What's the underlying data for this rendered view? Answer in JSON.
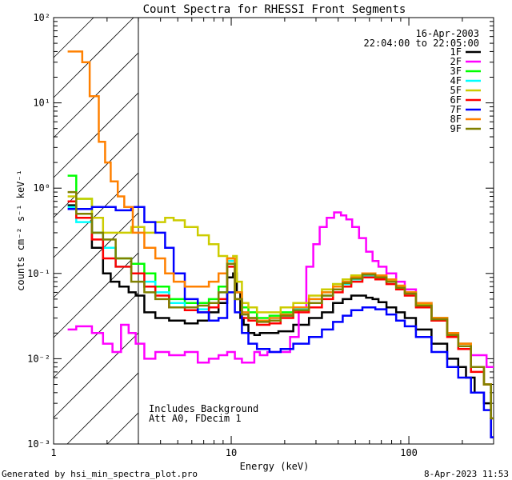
{
  "chart_data": {
    "type": "line",
    "title": "Count Spectra for RHESSI Front Segments",
    "xlabel": "Energy (keV)",
    "ylabel": "counts cm⁻² s⁻¹ keV⁻¹",
    "x_scale": "log",
    "y_scale": "log",
    "xlim": [
      1,
      300
    ],
    "ylim": [
      0.001,
      100
    ],
    "x_ticks": [
      {
        "value": 1,
        "label": "1"
      },
      {
        "value": 10,
        "label": "10"
      },
      {
        "value": 100,
        "label": "100"
      }
    ],
    "y_ticks": [
      {
        "exp": -3,
        "label": "10⁻³"
      },
      {
        "exp": -2,
        "label": "10⁻²"
      },
      {
        "exp": -1,
        "label": "10⁻¹"
      },
      {
        "exp": 0,
        "label": "10⁰"
      },
      {
        "exp": 1,
        "label": "10¹"
      },
      {
        "exp": 2,
        "label": "10²"
      }
    ],
    "hatched_region": {
      "x_from": 1,
      "x_to": 3
    },
    "date": "16-Apr-2003",
    "time_range": "22:04:00 to 22:05:00",
    "annotations": [
      "Includes Background",
      "Att A0, FDecim 1"
    ],
    "footer_left": "Generated by hsi_min_spectra_plot.pro",
    "footer_right": "8-Apr-2023 11:53",
    "legend_position": "top-right",
    "series": [
      {
        "name": "1F",
        "color": "#000000",
        "x": [
          1.2,
          1.5,
          1.8,
          2.0,
          2.2,
          2.5,
          2.8,
          3.0,
          3.5,
          4,
          5,
          6,
          7,
          8,
          9,
          10,
          10.5,
          11,
          11.5,
          12,
          13,
          14,
          15,
          17,
          20,
          25,
          30,
          35,
          40,
          45,
          50,
          55,
          60,
          65,
          70,
          80,
          90,
          100,
          120,
          150,
          180,
          200,
          220,
          250,
          280,
          300
        ],
        "values": [
          0.63,
          0.45,
          0.2,
          0.1,
          0.08,
          0.07,
          0.06,
          0.055,
          0.035,
          0.03,
          0.028,
          0.026,
          0.028,
          0.035,
          0.045,
          0.09,
          0.1,
          0.06,
          0.03,
          0.025,
          0.02,
          0.019,
          0.02,
          0.02,
          0.021,
          0.025,
          0.03,
          0.035,
          0.045,
          0.05,
          0.055,
          0.055,
          0.052,
          0.05,
          0.046,
          0.04,
          0.035,
          0.03,
          0.022,
          0.015,
          0.01,
          0.008,
          0.006,
          0.004,
          0.003,
          0.0012
        ]
      },
      {
        "name": "2F",
        "color": "#ff00ff",
        "x": [
          1.2,
          1.5,
          1.8,
          2.0,
          2.3,
          2.5,
          2.8,
          3.0,
          3.5,
          4,
          5,
          6,
          7,
          8,
          9,
          10,
          11,
          12,
          13,
          14,
          15,
          17,
          20,
          23,
          25,
          28,
          30,
          33,
          36,
          40,
          43,
          46,
          50,
          55,
          60,
          65,
          70,
          80,
          90,
          100,
          120,
          150,
          180,
          200,
          250,
          300
        ],
        "values": [
          0.022,
          0.024,
          0.02,
          0.015,
          0.012,
          0.025,
          0.02,
          0.015,
          0.01,
          0.012,
          0.011,
          0.012,
          0.009,
          0.01,
          0.011,
          0.012,
          0.01,
          0.009,
          0.009,
          0.012,
          0.011,
          0.012,
          0.012,
          0.018,
          0.04,
          0.12,
          0.22,
          0.35,
          0.45,
          0.52,
          0.48,
          0.43,
          0.35,
          0.26,
          0.18,
          0.14,
          0.12,
          0.1,
          0.08,
          0.065,
          0.045,
          0.03,
          0.02,
          0.015,
          0.011,
          0.008
        ]
      },
      {
        "name": "3F",
        "color": "#00ff00",
        "x": [
          1.2,
          1.5,
          1.8,
          2.0,
          2.5,
          3.0,
          3.5,
          4,
          5,
          6,
          7,
          8,
          9,
          10,
          11,
          12,
          13,
          15,
          18,
          20,
          25,
          30,
          35,
          40,
          45,
          50,
          60,
          70,
          80,
          90,
          100,
          120,
          150,
          180,
          200,
          250,
          280,
          300
        ],
        "values": [
          1.4,
          0.75,
          0.3,
          0.2,
          0.15,
          0.13,
          0.1,
          0.07,
          0.05,
          0.045,
          0.045,
          0.05,
          0.07,
          0.15,
          0.06,
          0.04,
          0.035,
          0.03,
          0.032,
          0.035,
          0.04,
          0.05,
          0.06,
          0.075,
          0.085,
          0.09,
          0.1,
          0.09,
          0.08,
          0.07,
          0.06,
          0.045,
          0.03,
          0.02,
          0.015,
          0.008,
          0.005,
          0.002
        ]
      },
      {
        "name": "4F",
        "color": "#00ffff",
        "x": [
          1.2,
          1.5,
          1.8,
          2.0,
          2.5,
          3.0,
          3.5,
          4,
          5,
          6,
          7,
          8,
          9,
          10,
          11,
          12,
          13,
          15,
          18,
          20,
          25,
          30,
          35,
          40,
          45,
          50,
          60,
          70,
          80,
          90,
          100,
          120,
          150,
          180,
          200,
          250,
          280,
          300
        ],
        "values": [
          0.6,
          0.4,
          0.3,
          0.2,
          0.12,
          0.1,
          0.08,
          0.06,
          0.045,
          0.04,
          0.038,
          0.04,
          0.06,
          0.14,
          0.05,
          0.035,
          0.03,
          0.028,
          0.03,
          0.032,
          0.038,
          0.045,
          0.055,
          0.065,
          0.075,
          0.085,
          0.095,
          0.09,
          0.08,
          0.068,
          0.058,
          0.042,
          0.028,
          0.019,
          0.014,
          0.008,
          0.005,
          0.002
        ]
      },
      {
        "name": "5F",
        "color": "#cccc00",
        "x": [
          1.2,
          1.5,
          1.8,
          2.0,
          2.5,
          3.0,
          3.5,
          4,
          4.5,
          5,
          6,
          7,
          8,
          9,
          10,
          10.5,
          11,
          12,
          13,
          15,
          18,
          20,
          25,
          30,
          35,
          40,
          45,
          50,
          60,
          70,
          80,
          90,
          100,
          120,
          150,
          180,
          200,
          250,
          280,
          300
        ],
        "values": [
          0.8,
          0.75,
          0.45,
          0.3,
          0.3,
          0.35,
          0.3,
          0.4,
          0.45,
          0.42,
          0.35,
          0.28,
          0.22,
          0.16,
          0.15,
          0.16,
          0.08,
          0.045,
          0.04,
          0.035,
          0.035,
          0.04,
          0.045,
          0.055,
          0.065,
          0.075,
          0.085,
          0.095,
          0.1,
          0.092,
          0.082,
          0.07,
          0.06,
          0.043,
          0.03,
          0.02,
          0.015,
          0.008,
          0.005,
          0.002
        ]
      },
      {
        "name": "6F",
        "color": "#ff0000",
        "x": [
          1.2,
          1.5,
          1.8,
          2.0,
          2.5,
          3.0,
          3.5,
          4,
          5,
          6,
          7,
          8,
          9,
          10,
          11,
          12,
          13,
          15,
          18,
          20,
          25,
          30,
          35,
          40,
          45,
          50,
          60,
          70,
          80,
          90,
          100,
          120,
          150,
          180,
          200,
          250,
          280,
          300
        ],
        "values": [
          0.7,
          0.45,
          0.25,
          0.15,
          0.12,
          0.1,
          0.07,
          0.055,
          0.04,
          0.037,
          0.035,
          0.04,
          0.05,
          0.12,
          0.05,
          0.03,
          0.028,
          0.025,
          0.026,
          0.03,
          0.035,
          0.04,
          0.05,
          0.06,
          0.07,
          0.08,
          0.09,
          0.085,
          0.075,
          0.065,
          0.055,
          0.04,
          0.028,
          0.018,
          0.013,
          0.007,
          0.005,
          0.002
        ]
      },
      {
        "name": "7F",
        "color": "#0000ff",
        "x": [
          1.2,
          1.5,
          1.8,
          2.0,
          2.5,
          3.0,
          3.5,
          4,
          4.5,
          5,
          6,
          7,
          8,
          9,
          10,
          11,
          12,
          13,
          15,
          18,
          20,
          25,
          30,
          35,
          40,
          45,
          50,
          60,
          70,
          80,
          90,
          100,
          120,
          150,
          180,
          200,
          250,
          280,
          300
        ],
        "values": [
          0.57,
          0.57,
          0.6,
          0.6,
          0.55,
          0.6,
          0.4,
          0.3,
          0.2,
          0.1,
          0.05,
          0.035,
          0.028,
          0.03,
          0.06,
          0.035,
          0.02,
          0.015,
          0.013,
          0.012,
          0.013,
          0.015,
          0.018,
          0.022,
          0.027,
          0.032,
          0.037,
          0.04,
          0.038,
          0.033,
          0.028,
          0.024,
          0.018,
          0.012,
          0.008,
          0.006,
          0.004,
          0.0025,
          0.0012
        ]
      },
      {
        "name": "8F",
        "color": "#ff8000",
        "x": [
          1.2,
          1.4,
          1.5,
          1.7,
          1.9,
          2.0,
          2.2,
          2.4,
          2.6,
          3.0,
          3.5,
          4,
          4.5,
          5,
          6,
          7,
          8,
          9,
          10,
          11,
          12,
          13,
          15,
          18,
          20,
          25,
          30,
          35,
          40,
          45,
          50,
          60,
          70,
          80,
          90,
          100,
          120,
          150,
          180,
          200,
          250,
          280,
          300
        ],
        "values": [
          40,
          40,
          30,
          12,
          3.5,
          2,
          1.2,
          0.8,
          0.6,
          0.3,
          0.2,
          0.15,
          0.1,
          0.08,
          0.07,
          0.07,
          0.08,
          0.1,
          0.15,
          0.06,
          0.035,
          0.03,
          0.028,
          0.03,
          0.033,
          0.04,
          0.05,
          0.06,
          0.07,
          0.08,
          0.09,
          0.1,
          0.095,
          0.085,
          0.072,
          0.06,
          0.045,
          0.03,
          0.02,
          0.015,
          0.008,
          0.005,
          0.002
        ]
      },
      {
        "name": "9F",
        "color": "#808000",
        "x": [
          1.2,
          1.5,
          1.8,
          2.0,
          2.5,
          3.0,
          3.5,
          4,
          5,
          6,
          7,
          8,
          9,
          10,
          11,
          12,
          13,
          15,
          18,
          20,
          25,
          30,
          35,
          40,
          45,
          50,
          60,
          70,
          80,
          90,
          100,
          120,
          150,
          180,
          200,
          250,
          280,
          300
        ],
        "values": [
          0.9,
          0.5,
          0.3,
          0.25,
          0.15,
          0.08,
          0.06,
          0.05,
          0.04,
          0.04,
          0.042,
          0.045,
          0.06,
          0.13,
          0.05,
          0.033,
          0.03,
          0.027,
          0.028,
          0.032,
          0.037,
          0.045,
          0.055,
          0.065,
          0.077,
          0.087,
          0.097,
          0.09,
          0.08,
          0.068,
          0.058,
          0.042,
          0.029,
          0.019,
          0.014,
          0.008,
          0.005,
          0.002
        ]
      }
    ]
  }
}
